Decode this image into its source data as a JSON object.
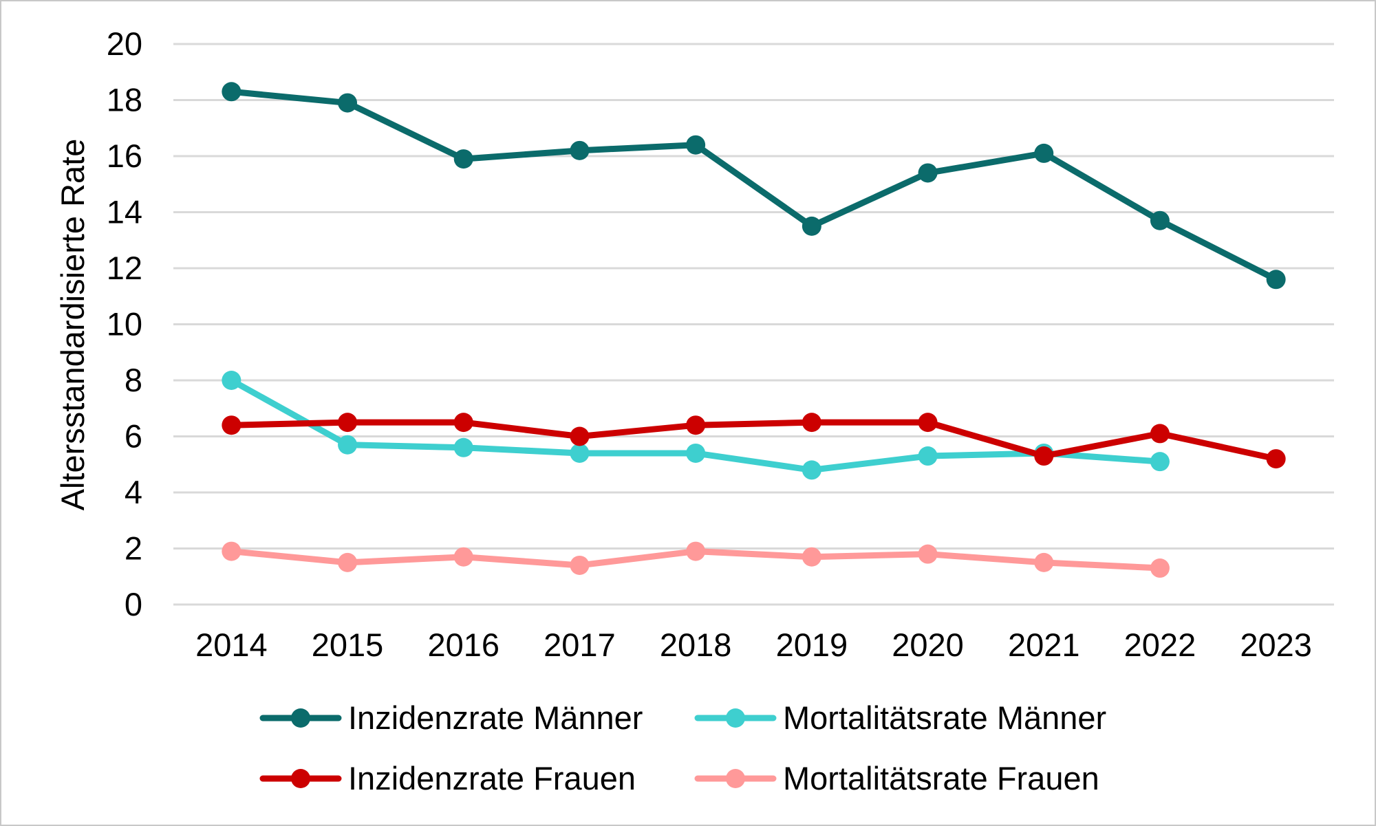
{
  "chart_data": {
    "type": "line",
    "title": "",
    "xlabel": "",
    "ylabel": "Altersstandardisierte Rate",
    "categories": [
      "2014",
      "2015",
      "2016",
      "2017",
      "2018",
      "2019",
      "2020",
      "2021",
      "2022",
      "2023"
    ],
    "ylim": [
      0,
      20
    ],
    "yticks": [
      "0",
      "2",
      "4",
      "6",
      "8",
      "10",
      "12",
      "14",
      "16",
      "18",
      "20"
    ],
    "grid": "horizontal",
    "legend_position": "bottom",
    "series": [
      {
        "name": "Inzidenzrate Männer",
        "color": "#0b6b6b",
        "values": [
          18.3,
          17.9,
          15.9,
          16.2,
          16.4,
          13.5,
          15.4,
          16.1,
          13.7,
          11.6
        ]
      },
      {
        "name": "Mortalitätsrate Männer",
        "color": "#3ecfcf",
        "values": [
          8.0,
          5.7,
          5.6,
          5.4,
          5.4,
          4.8,
          5.3,
          5.4,
          5.1,
          null
        ]
      },
      {
        "name": "Inzidenzrate Frauen",
        "color": "#cc0000",
        "values": [
          6.4,
          6.5,
          6.5,
          6.0,
          6.4,
          6.5,
          6.5,
          5.3,
          6.1,
          5.2
        ]
      },
      {
        "name": "Mortalitätsrate Frauen",
        "color": "#ff9999",
        "values": [
          1.9,
          1.5,
          1.7,
          1.4,
          1.9,
          1.7,
          1.8,
          1.5,
          1.3,
          null
        ]
      }
    ]
  }
}
